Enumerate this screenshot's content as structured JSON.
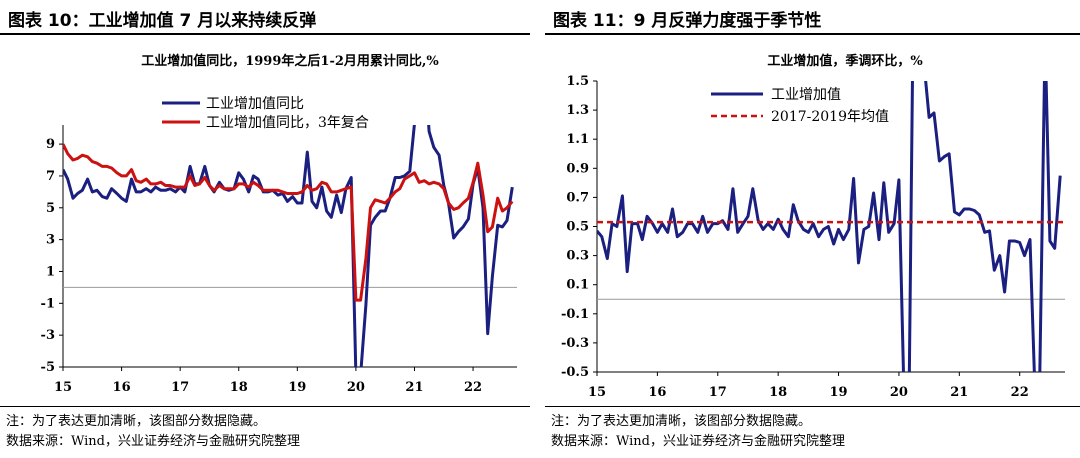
{
  "left_panel": {
    "figure_title": "图表 10：工业增加值 7 月以来持续反弹",
    "note": "注：为了表达更加清晰，该图部分数据隐藏。",
    "source": "数据来源：Wind，兴业证券经济与金融研究院整理"
  },
  "right_panel": {
    "figure_title": "图表 11：9 月反弹力度强于季节性",
    "note": "注：为了表达更加清晰，该图部分数据隐藏。",
    "source": "数据来源：Wind，兴业证券经济与金融研究院整理"
  },
  "chart_data": [
    {
      "type": "line",
      "title": "工业增加值同比，1999年之后1-2月用累计同比,%",
      "xlabel": "",
      "ylabel": "",
      "x_ticks": [
        "15",
        "16",
        "17",
        "18",
        "19",
        "20",
        "21",
        "22"
      ],
      "x_range": [
        2015.0,
        2022.75
      ],
      "y_ticks": [
        9,
        7,
        5,
        3,
        1,
        -1,
        -3,
        -5
      ],
      "ylim": [
        -5,
        10.2
      ],
      "legend_position": "top-left",
      "colors": {
        "yoy": "#1a1f80",
        "yoy3": "#cc1111",
        "zero": "#999999"
      },
      "series": [
        {
          "name": "工业增加值同比",
          "x": [
            2015.0,
            2015.08,
            2015.17,
            2015.25,
            2015.33,
            2015.42,
            2015.5,
            2015.58,
            2015.67,
            2015.75,
            2015.83,
            2015.92,
            2016.0,
            2016.08,
            2016.17,
            2016.25,
            2016.33,
            2016.42,
            2016.5,
            2016.58,
            2016.67,
            2016.75,
            2016.83,
            2016.92,
            2017.0,
            2017.08,
            2017.17,
            2017.25,
            2017.33,
            2017.42,
            2017.5,
            2017.58,
            2017.67,
            2017.75,
            2017.83,
            2017.92,
            2018.0,
            2018.08,
            2018.17,
            2018.25,
            2018.33,
            2018.42,
            2018.5,
            2018.58,
            2018.67,
            2018.75,
            2018.83,
            2018.92,
            2019.0,
            2019.08,
            2019.17,
            2019.25,
            2019.33,
            2019.42,
            2019.5,
            2019.58,
            2019.67,
            2019.75,
            2019.83,
            2019.92,
            2020.0,
            2020.08,
            2020.17,
            2020.25,
            2020.33,
            2020.42,
            2020.5,
            2020.58,
            2020.67,
            2020.75,
            2020.83,
            2020.92,
            2021.0,
            2021.08,
            2021.17,
            2021.25,
            2021.33,
            2021.42,
            2021.5,
            2021.58,
            2021.67,
            2021.75,
            2021.83,
            2021.92,
            2022.0,
            2022.08,
            2022.17,
            2022.25,
            2022.33,
            2022.42,
            2022.5,
            2022.58,
            2022.67
          ],
          "values": [
            7.4,
            6.8,
            5.6,
            5.9,
            6.1,
            6.8,
            6.0,
            6.1,
            5.7,
            5.6,
            6.2,
            5.9,
            5.6,
            5.4,
            6.8,
            6.0,
            6.0,
            6.2,
            6.0,
            6.3,
            6.1,
            6.1,
            6.2,
            6.0,
            6.3,
            6.0,
            7.6,
            6.5,
            6.5,
            7.6,
            6.4,
            6.0,
            6.6,
            6.2,
            6.1,
            6.2,
            7.2,
            6.8,
            6.0,
            7.0,
            6.8,
            6.0,
            6.0,
            6.1,
            5.8,
            5.9,
            5.4,
            5.7,
            5.3,
            5.3,
            8.5,
            5.4,
            5.0,
            6.3,
            4.8,
            4.4,
            5.8,
            4.7,
            6.2,
            6.9,
            -5.5,
            -5.5,
            -1.1,
            3.9,
            4.4,
            4.8,
            4.8,
            5.6,
            6.9,
            6.9,
            7.0,
            7.3,
            10.3,
            10.5,
            14.1,
            9.8,
            8.8,
            8.3,
            6.4,
            5.3,
            3.1,
            3.5,
            3.8,
            4.3,
            6.5,
            7.5,
            5.0,
            -2.9,
            0.7,
            3.9,
            3.8,
            4.2,
            6.3
          ]
        },
        {
          "name": "工业增加值同比，3年复合",
          "x": [
            2015.0,
            2015.08,
            2015.17,
            2015.25,
            2015.33,
            2015.42,
            2015.5,
            2015.58,
            2015.67,
            2015.75,
            2015.83,
            2015.92,
            2016.0,
            2016.08,
            2016.17,
            2016.25,
            2016.33,
            2016.42,
            2016.5,
            2016.58,
            2016.67,
            2016.75,
            2016.83,
            2016.92,
            2017.0,
            2017.08,
            2017.17,
            2017.25,
            2017.33,
            2017.42,
            2017.5,
            2017.58,
            2017.67,
            2017.75,
            2017.83,
            2017.92,
            2018.0,
            2018.08,
            2018.17,
            2018.25,
            2018.33,
            2018.42,
            2018.5,
            2018.58,
            2018.67,
            2018.75,
            2018.83,
            2018.92,
            2019.0,
            2019.08,
            2019.17,
            2019.25,
            2019.33,
            2019.42,
            2019.5,
            2019.58,
            2019.67,
            2019.75,
            2019.83,
            2019.92,
            2020.0,
            2020.08,
            2020.17,
            2020.25,
            2020.33,
            2020.42,
            2020.5,
            2020.58,
            2020.67,
            2020.75,
            2020.83,
            2020.92,
            2021.0,
            2021.08,
            2021.17,
            2021.25,
            2021.33,
            2021.42,
            2021.5,
            2021.58,
            2021.67,
            2021.75,
            2021.83,
            2021.92,
            2022.0,
            2022.08,
            2022.17,
            2022.25,
            2022.33,
            2022.42,
            2022.5,
            2022.58,
            2022.67
          ],
          "values": [
            9.0,
            8.4,
            8.0,
            8.1,
            8.3,
            8.2,
            7.9,
            7.8,
            7.6,
            7.6,
            7.5,
            7.2,
            7.0,
            7.0,
            7.4,
            6.7,
            6.6,
            6.8,
            6.5,
            6.5,
            6.6,
            6.4,
            6.4,
            6.3,
            6.3,
            6.3,
            7.0,
            6.4,
            6.5,
            6.9,
            6.4,
            6.1,
            6.4,
            6.2,
            6.2,
            6.2,
            6.5,
            6.5,
            6.3,
            6.6,
            6.4,
            6.1,
            6.1,
            6.1,
            6.1,
            6.0,
            5.9,
            5.9,
            5.9,
            6.0,
            6.4,
            6.1,
            6.2,
            6.6,
            6.5,
            6.0,
            6.0,
            6.1,
            6.2,
            6.3,
            -0.8,
            -0.8,
            1.8,
            5.0,
            5.5,
            5.4,
            5.3,
            5.6,
            6.0,
            6.2,
            6.8,
            7.0,
            7.2,
            6.6,
            6.7,
            6.5,
            6.6,
            6.5,
            6.2,
            5.3,
            4.9,
            5.0,
            5.3,
            5.6,
            6.6,
            7.8,
            5.8,
            3.5,
            3.8,
            5.6,
            4.8,
            5.0,
            5.4
          ]
        }
      ]
    },
    {
      "type": "line",
      "title": "工业增加值，季调环比，%",
      "xlabel": "",
      "ylabel": "",
      "x_ticks": [
        "15",
        "16",
        "17",
        "18",
        "19",
        "20",
        "21",
        "22"
      ],
      "x_range": [
        2015.0,
        2022.75
      ],
      "y_ticks": [
        "1.5",
        "1.3",
        "1.1",
        "0.9",
        "0.7",
        "0.5",
        "0.3",
        "0.1",
        "-0.1",
        "-0.3",
        "-0.5"
      ],
      "y_tick_values": [
        1.5,
        1.3,
        1.1,
        0.9,
        0.7,
        0.5,
        0.3,
        0.1,
        -0.1,
        -0.3,
        -0.5
      ],
      "ylim": [
        -0.5,
        1.5
      ],
      "legend_position": "top-left",
      "colors": {
        "mom": "#1a1f80",
        "avg": "#cc1111",
        "zero": "#999999"
      },
      "series": [
        {
          "name": "工业增加值",
          "x": [
            2015.0,
            2015.08,
            2015.17,
            2015.25,
            2015.33,
            2015.42,
            2015.5,
            2015.58,
            2015.67,
            2015.75,
            2015.83,
            2015.92,
            2016.0,
            2016.08,
            2016.17,
            2016.25,
            2016.33,
            2016.42,
            2016.5,
            2016.58,
            2016.67,
            2016.75,
            2016.83,
            2016.92,
            2017.0,
            2017.08,
            2017.17,
            2017.25,
            2017.33,
            2017.42,
            2017.5,
            2017.58,
            2017.67,
            2017.75,
            2017.83,
            2017.92,
            2018.0,
            2018.08,
            2018.17,
            2018.25,
            2018.33,
            2018.42,
            2018.5,
            2018.58,
            2018.67,
            2018.75,
            2018.83,
            2018.92,
            2019.0,
            2019.08,
            2019.17,
            2019.25,
            2019.33,
            2019.42,
            2019.5,
            2019.58,
            2019.67,
            2019.75,
            2019.83,
            2019.92,
            2020.0,
            2020.08,
            2020.17,
            2020.25,
            2020.33,
            2020.42,
            2020.5,
            2020.58,
            2020.67,
            2020.75,
            2020.83,
            2020.92,
            2021.0,
            2021.08,
            2021.17,
            2021.25,
            2021.33,
            2021.42,
            2021.5,
            2021.58,
            2021.67,
            2021.75,
            2021.83,
            2021.92,
            2022.0,
            2022.08,
            2022.17,
            2022.25,
            2022.33,
            2022.42,
            2022.5,
            2022.58,
            2022.67
          ],
          "values": [
            0.47,
            0.43,
            0.28,
            0.52,
            0.5,
            0.71,
            0.19,
            0.52,
            0.52,
            0.41,
            0.57,
            0.52,
            0.46,
            0.52,
            0.46,
            0.62,
            0.43,
            0.46,
            0.52,
            0.52,
            0.46,
            0.57,
            0.46,
            0.52,
            0.52,
            0.54,
            0.48,
            0.76,
            0.46,
            0.52,
            0.57,
            0.76,
            0.54,
            0.48,
            0.52,
            0.48,
            0.55,
            0.48,
            0.43,
            0.65,
            0.54,
            0.48,
            0.46,
            0.52,
            0.43,
            0.48,
            0.5,
            0.38,
            0.48,
            0.41,
            0.48,
            0.83,
            0.25,
            0.48,
            0.5,
            0.73,
            0.41,
            0.8,
            0.46,
            0.52,
            0.82,
            -0.6,
            -0.6,
            2.5,
            2.0,
            1.6,
            1.25,
            1.28,
            0.95,
            0.98,
            1.0,
            0.6,
            0.58,
            0.62,
            0.62,
            0.61,
            0.58,
            0.46,
            0.47,
            0.2,
            0.3,
            0.05,
            0.4,
            0.4,
            0.39,
            0.3,
            0.41,
            -0.6,
            -0.6,
            1.8,
            0.4,
            0.35,
            0.85
          ]
        },
        {
          "name": "2017-2019年均值",
          "x": [
            2015.0,
            2022.75
          ],
          "values": [
            0.53,
            0.53
          ]
        }
      ]
    }
  ]
}
